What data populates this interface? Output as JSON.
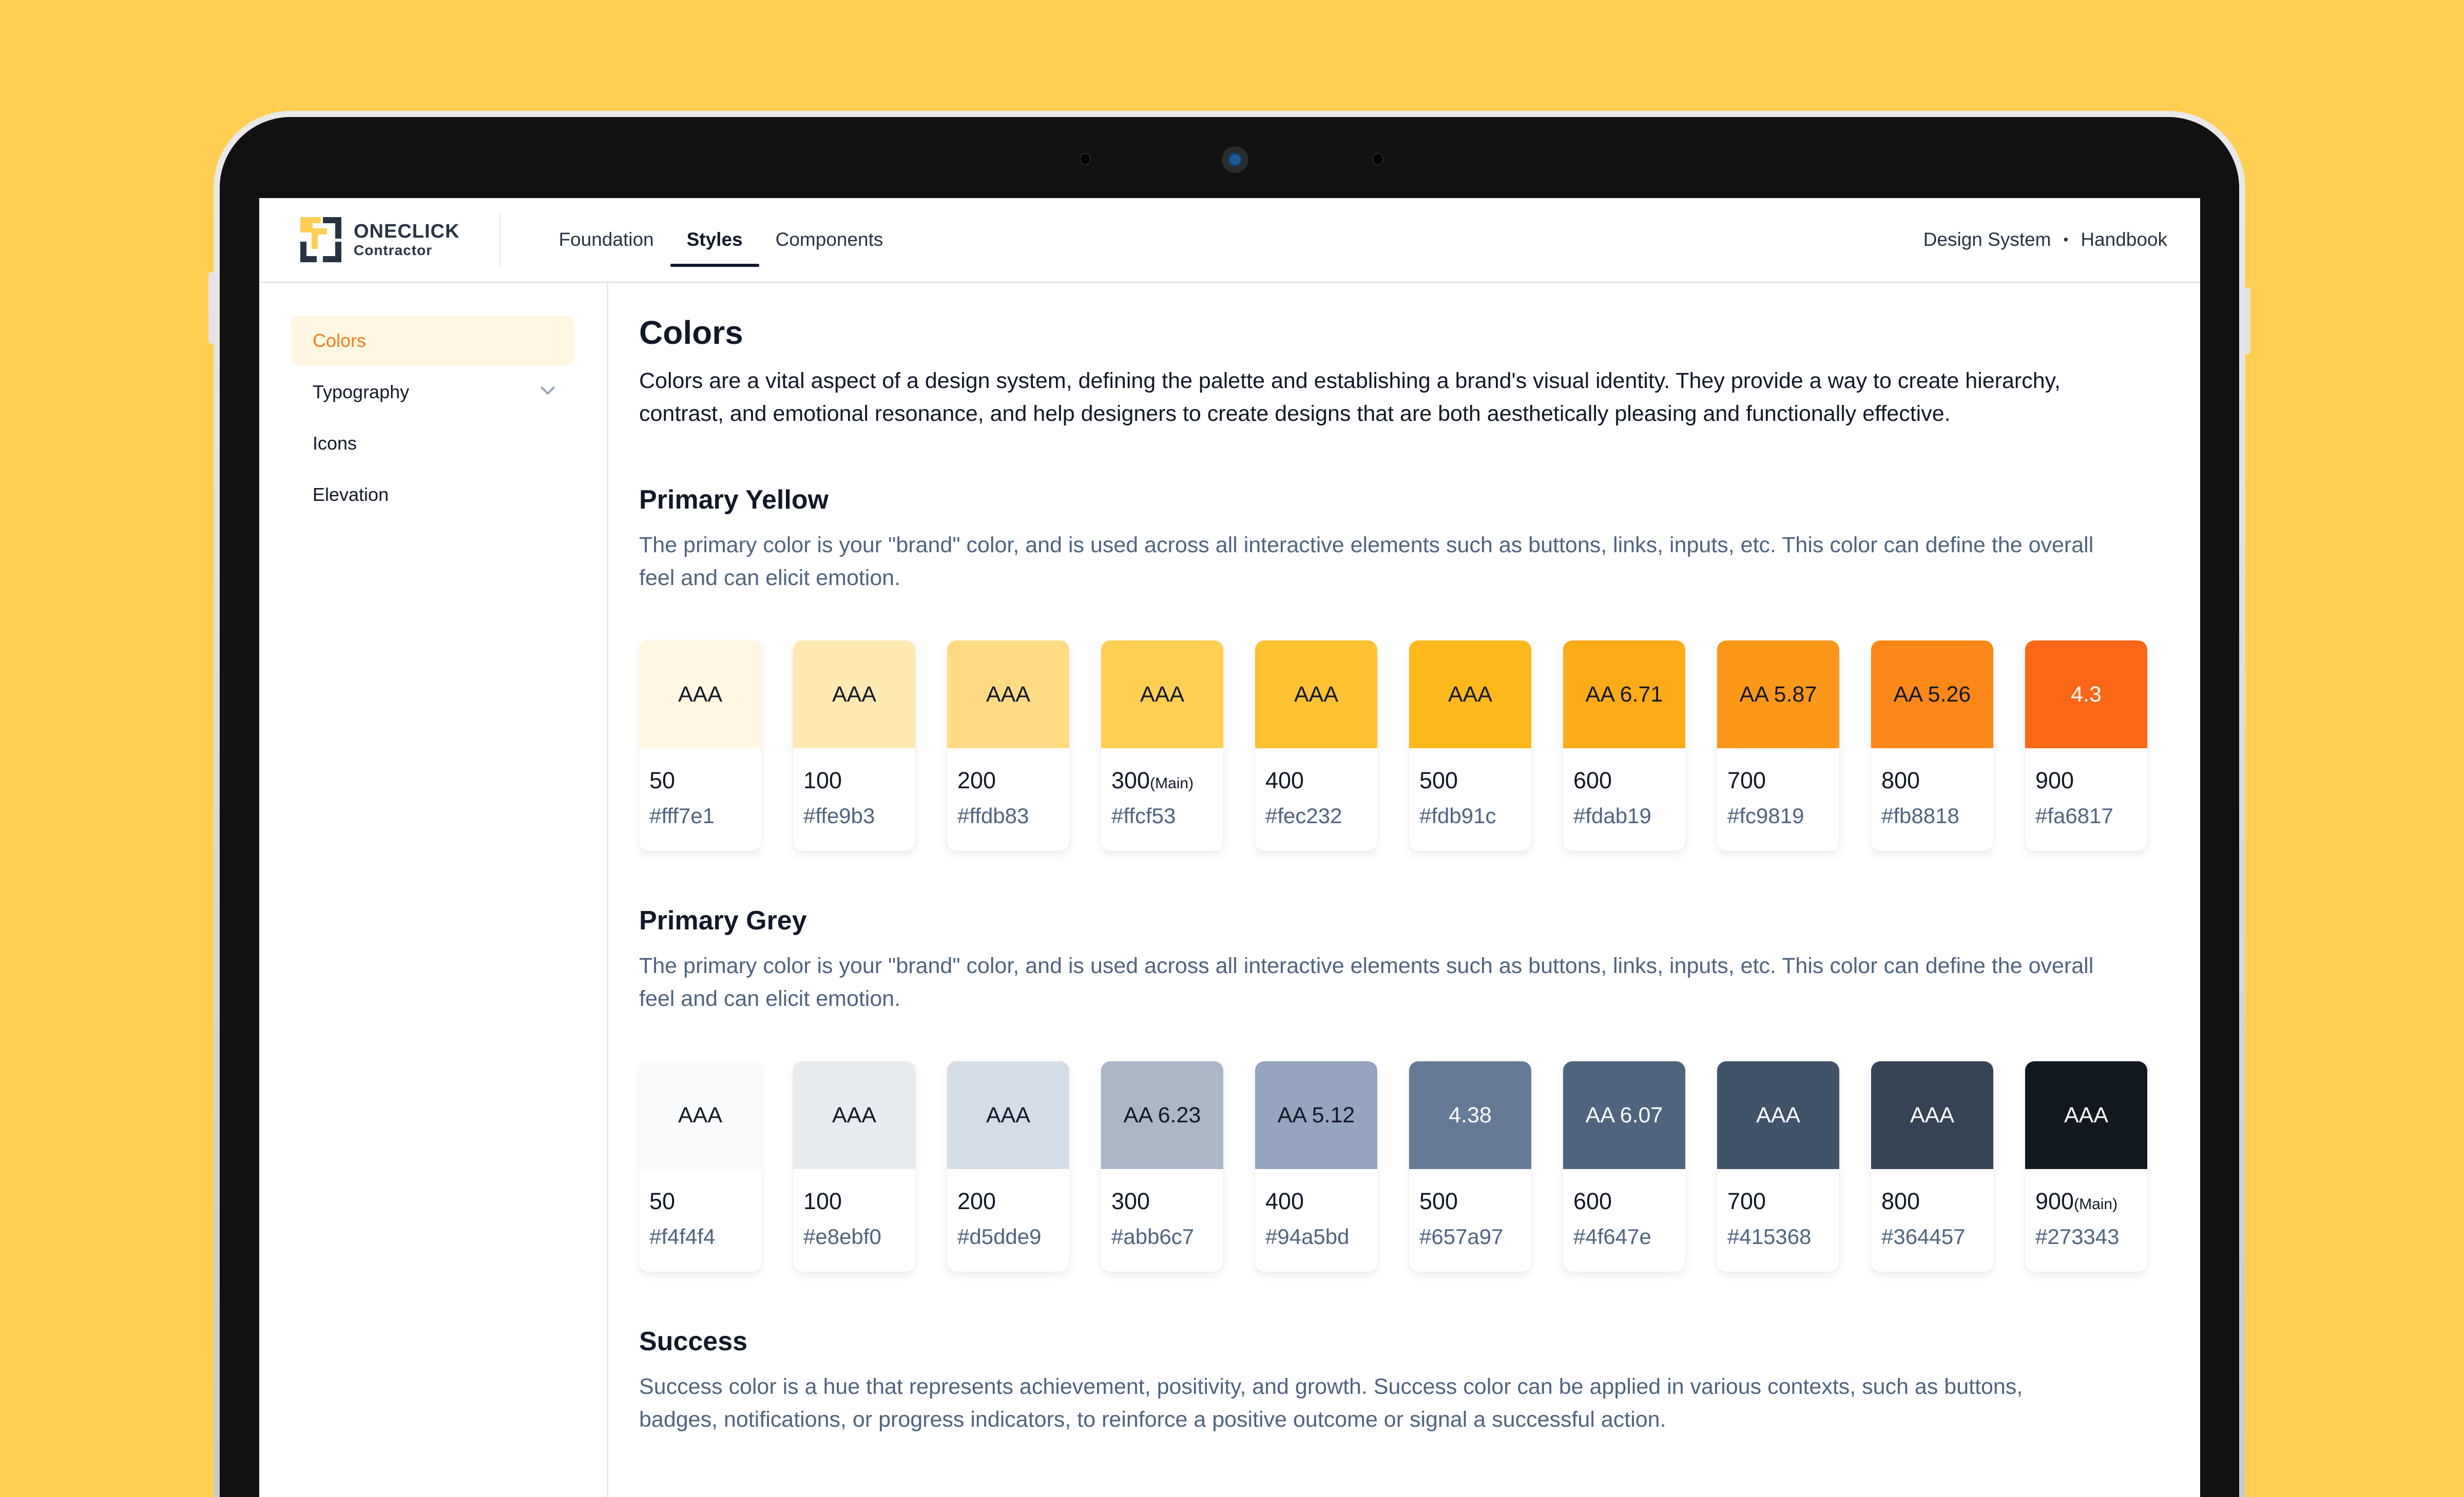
{
  "header": {
    "logo": {
      "title": "ONECLICK",
      "subtitle": "Contractor"
    },
    "nav": [
      {
        "label": "Foundation",
        "active": false
      },
      {
        "label": "Styles",
        "active": true
      },
      {
        "label": "Components",
        "active": false
      }
    ],
    "right": {
      "link1": "Design System",
      "separator": "•",
      "link2": "Handbook"
    }
  },
  "sidebar": {
    "items": [
      {
        "label": "Colors",
        "active": true
      },
      {
        "label": "Typography",
        "icon": "chevron-down-icon"
      },
      {
        "label": "Icons"
      },
      {
        "label": "Elevation"
      }
    ]
  },
  "page": {
    "title": "Colors",
    "description": "Colors are a vital aspect of a design system, defining the palette and establishing a brand's visual identity. They provide a way to create hierarchy, contrast, and emotional resonance, and help designers to create designs that are both aesthetically pleasing and functionally effective."
  },
  "sections": [
    {
      "title": "Primary Yellow",
      "description": "The primary color is your \"brand\" color, and is used across all interactive elements such as buttons, links, inputs, etc. This color can define the overall feel and can elicit emotion.",
      "swatches": [
        {
          "contrast": "AAA",
          "shade": "50",
          "hex": "#fff7e1",
          "text_color": "#111827"
        },
        {
          "contrast": "AAA",
          "shade": "100",
          "hex": "#ffe9b3",
          "text_color": "#111827"
        },
        {
          "contrast": "AAA",
          "shade": "200",
          "hex": "#ffdb83",
          "text_color": "#111827"
        },
        {
          "contrast": "AAA",
          "shade": "300",
          "main": "(Main)",
          "hex": "#ffcf53",
          "text_color": "#111827"
        },
        {
          "contrast": "AAA",
          "shade": "400",
          "hex": "#fec232",
          "text_color": "#111827"
        },
        {
          "contrast": "AAA",
          "shade": "500",
          "hex": "#fdb91c",
          "text_color": "#111827"
        },
        {
          "contrast": "AA 6.71",
          "shade": "600",
          "hex": "#fdab19",
          "text_color": "#111827"
        },
        {
          "contrast": "AA 5.87",
          "shade": "700",
          "hex": "#fc9819",
          "text_color": "#111827"
        },
        {
          "contrast": "AA 5.26",
          "shade": "800",
          "hex": "#fb8818",
          "text_color": "#111827"
        },
        {
          "contrast": "4.3",
          "shade": "900",
          "hex": "#fa6817",
          "text_color": "#ffffff"
        }
      ]
    },
    {
      "title": "Primary Grey",
      "description": "The primary color is your \"brand\" color, and is used across all interactive elements such as buttons, links, inputs, etc. This color can define the overall feel and can elicit emotion.",
      "swatches": [
        {
          "contrast": "AAA",
          "shade": "50",
          "hex": "#f4f4f4",
          "swatch_color": "#f9fafc",
          "text_color": "#111827"
        },
        {
          "contrast": "AAA",
          "shade": "100",
          "hex": "#e8ebf0",
          "text_color": "#111827"
        },
        {
          "contrast": "AAA",
          "shade": "200",
          "hex": "#d5dde9",
          "text_color": "#111827"
        },
        {
          "contrast": "AA 6.23",
          "shade": "300",
          "hex": "#abb6c7",
          "text_color": "#111827"
        },
        {
          "contrast": "AA 5.12",
          "shade": "400",
          "hex": "#94a5bd",
          "text_color": "#111827"
        },
        {
          "contrast": "4.38",
          "shade": "500",
          "hex": "#657a97",
          "text_color": "#ffffff"
        },
        {
          "contrast": "AA 6.07",
          "shade": "600",
          "hex": "#4f647e",
          "text_color": "#ffffff"
        },
        {
          "contrast": "AAA",
          "shade": "700",
          "hex": "#415368",
          "text_color": "#ffffff"
        },
        {
          "contrast": "AAA",
          "shade": "800",
          "hex": "#364457",
          "text_color": "#ffffff"
        },
        {
          "contrast": "AAA",
          "shade": "900",
          "main": "(Main)",
          "hex": "#273343",
          "swatch_color": "#111820",
          "text_color": "#ffffff"
        }
      ]
    },
    {
      "title": "Success",
      "description": "Success color is a hue that represents achievement, positivity, and growth. Success color can be applied in various contexts, such as buttons, badges, notifications, or progress indicators, to reinforce a positive outcome or signal a successful action."
    }
  ],
  "colors": {
    "background": "#ffcf53",
    "accent": "#f57c1f",
    "active_bg": "#fff7e1",
    "text": "#111827",
    "muted_text": "#4f647e"
  }
}
